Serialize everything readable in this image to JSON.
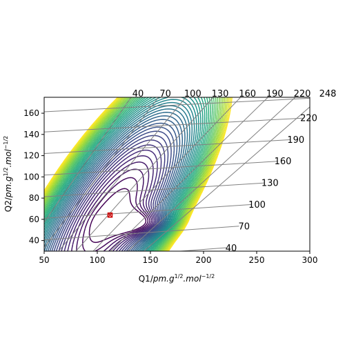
{
  "chart_data": {
    "type": "contour",
    "xlabel_parts": {
      "base": "Q1/",
      "italic": "pm.g",
      "sup1": "1/2",
      "mid": ".mol",
      "sup2": "−1/2"
    },
    "ylabel_parts": {
      "base": "Q2/",
      "italic": "pm.g",
      "sup1": "1/2",
      "mid": ".mol",
      "sup2": "−1/2"
    },
    "xlim": [
      50,
      300
    ],
    "ylim": [
      30,
      175
    ],
    "x_ticks": [
      50,
      100,
      150,
      200,
      250,
      300
    ],
    "y_ticks": [
      40,
      60,
      80,
      100,
      120,
      140,
      160
    ],
    "grid": true,
    "skewed_grid_labels_top": [
      "40",
      "70",
      "100",
      "130",
      "160",
      "190",
      "220",
      "248"
    ],
    "skewed_grid_labels_right": [
      "220",
      "190",
      "160",
      "130",
      "100",
      "70",
      "40"
    ],
    "skewed_grid_values": [
      40,
      70,
      100,
      130,
      160,
      190,
      220,
      248
    ],
    "contour_levels": {
      "min": 0,
      "max": 40,
      "count": 40,
      "colormap": "viridis"
    },
    "minimum_marker": {
      "x": 112,
      "y": 64,
      "color": "#cc0000"
    },
    "saddle_point": {
      "x": 147,
      "y": 56
    },
    "frame": {
      "x": [
        64,
        449
      ],
      "y": [
        141,
        364
      ]
    },
    "colormap_stops": [
      "#440154",
      "#472c7a",
      "#3b518b",
      "#2c718e",
      "#21908d",
      "#27ad81",
      "#5cc863",
      "#aadc32",
      "#fde725"
    ]
  }
}
